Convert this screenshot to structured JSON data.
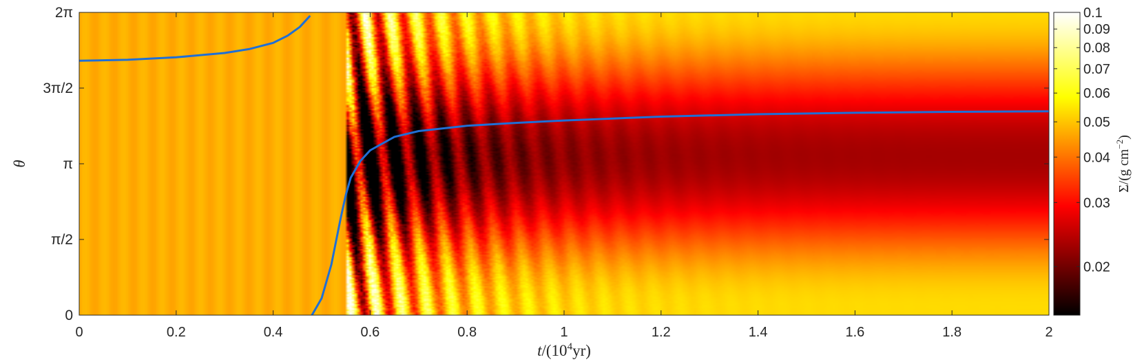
{
  "chart_data": {
    "type": "heatmap",
    "title": "",
    "xlabel": {
      "var": "t",
      "open": "/(10",
      "exp": "4",
      "close": "yr)"
    },
    "ylabel": "θ",
    "xlim": [
      0,
      2
    ],
    "ylim": [
      0,
      6.283185
    ],
    "x_ticks": [
      {
        "value": 0,
        "label": "0"
      },
      {
        "value": 0.2,
        "label": "0.2"
      },
      {
        "value": 0.4,
        "label": "0.4"
      },
      {
        "value": 0.6,
        "label": "0.6"
      },
      {
        "value": 0.8,
        "label": "0.8"
      },
      {
        "value": 1.0,
        "label": "1"
      },
      {
        "value": 1.2,
        "label": "1.2"
      },
      {
        "value": 1.4,
        "label": "1.4"
      },
      {
        "value": 1.6,
        "label": "1.6"
      },
      {
        "value": 1.8,
        "label": "1.8"
      },
      {
        "value": 2.0,
        "label": "2"
      }
    ],
    "y_ticks": [
      {
        "value": 0,
        "label": "0"
      },
      {
        "value": 1.570796,
        "label": "π/2"
      },
      {
        "value": 3.141593,
        "label": "π"
      },
      {
        "value": 4.712389,
        "label": "3π/2"
      },
      {
        "value": 6.283185,
        "label": "2π"
      }
    ],
    "colorbar": {
      "label": {
        "sym": "Σ",
        "open": "/(g cm",
        "exp": "−2",
        "close": ")"
      },
      "scale": "log",
      "range": [
        0.0147,
        0.1
      ],
      "colormap": "hot",
      "ticks": [
        {
          "value": 0.02,
          "label": "0.02"
        },
        {
          "value": 0.03,
          "label": "0.03"
        },
        {
          "value": 0.04,
          "label": "0.04"
        },
        {
          "value": 0.05,
          "label": "0.05"
        },
        {
          "value": 0.06,
          "label": "0.06"
        },
        {
          "value": 0.07,
          "label": "0.07"
        },
        {
          "value": 0.08,
          "label": "0.08"
        },
        {
          "value": 0.09,
          "label": "0.09"
        },
        {
          "value": 0.1,
          "label": "0.1"
        }
      ]
    },
    "field_description": {
      "background_value": 0.047,
      "disturbance_onset_t": 0.55,
      "late_time_trough_theta": 3.3,
      "late_time_trough_value": 0.023,
      "late_time_crest_theta": 0.3,
      "late_time_crest_value": 0.052
    },
    "series": [
      {
        "type": "line",
        "color": "#1f6fd6",
        "segments": [
          [
            [
              0,
              5.28
            ],
            [
              0.1,
              5.3
            ],
            [
              0.2,
              5.35
            ],
            [
              0.3,
              5.44
            ],
            [
              0.35,
              5.52
            ],
            [
              0.4,
              5.65
            ],
            [
              0.43,
              5.8
            ],
            [
              0.455,
              5.98
            ],
            [
              0.475,
              6.2
            ]
          ],
          [
            [
              0.48,
              0.0
            ],
            [
              0.5,
              0.35
            ],
            [
              0.52,
              1.05
            ],
            [
              0.53,
              1.55
            ],
            [
              0.54,
              2.05
            ],
            [
              0.55,
              2.5
            ],
            [
              0.56,
              2.85
            ],
            [
              0.58,
              3.2
            ],
            [
              0.6,
              3.42
            ],
            [
              0.65,
              3.7
            ],
            [
              0.7,
              3.82
            ],
            [
              0.8,
              3.93
            ],
            [
              0.9,
              3.99
            ],
            [
              1.0,
              4.04
            ],
            [
              1.2,
              4.12
            ],
            [
              1.4,
              4.17
            ],
            [
              1.6,
              4.2
            ],
            [
              1.8,
              4.22
            ],
            [
              2.0,
              4.23
            ]
          ]
        ]
      }
    ]
  }
}
